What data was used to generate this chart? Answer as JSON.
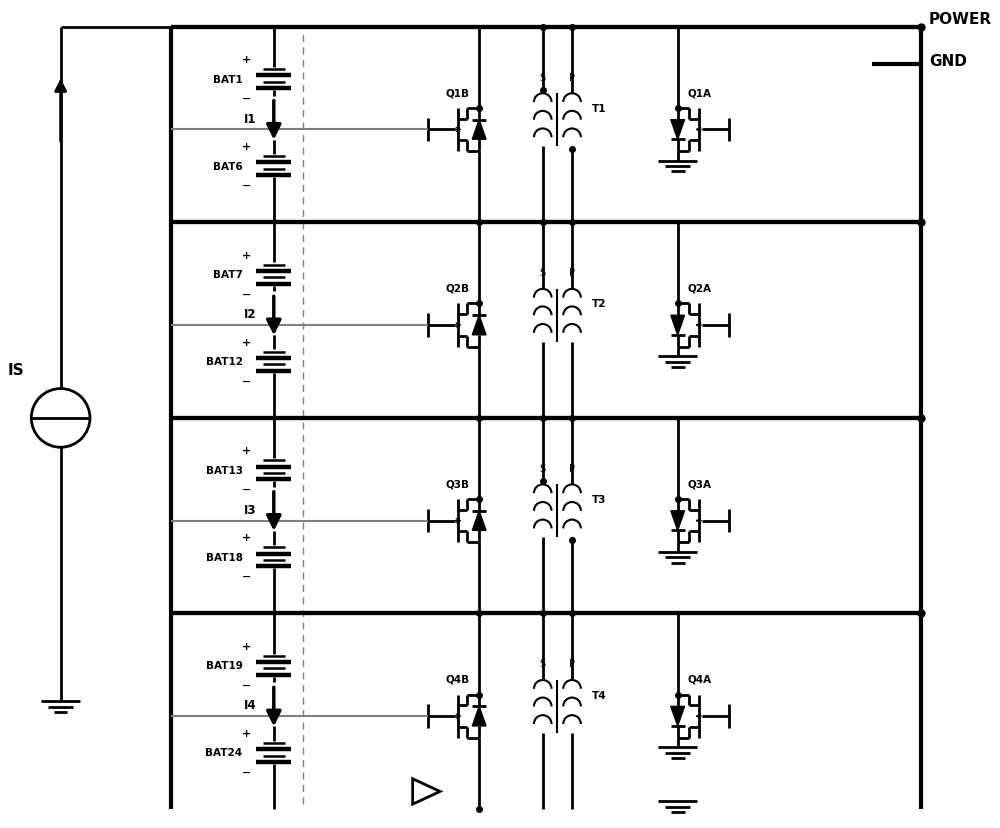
{
  "bg_color": "#ffffff",
  "line_color": "#000000",
  "figsize": [
    10.0,
    8.29
  ],
  "dpi": 100,
  "power_label": "POWER",
  "gnd_label": "GND",
  "is_label": "IS",
  "sections": [
    {
      "bat_top": "BAT1",
      "bat_bot": "BAT6",
      "I": "I1",
      "T": "T1",
      "QB": "Q1B",
      "QA": "Q1A"
    },
    {
      "bat_top": "BAT7",
      "bat_bot": "BAT12",
      "I": "I2",
      "T": "T2",
      "QB": "Q2B",
      "QA": "Q2A"
    },
    {
      "bat_top": "BAT13",
      "bat_bot": "BAT18",
      "I": "I3",
      "T": "T3",
      "QB": "Q3B",
      "QA": "Q3A"
    },
    {
      "bat_top": "BAT19",
      "bat_bot": "BAT24",
      "I": "I4",
      "T": "T4",
      "QB": "Q4B",
      "QA": "Q4A"
    }
  ],
  "lw_heavy": 3.0,
  "lw_med": 2.0,
  "lw_thin": 1.5
}
